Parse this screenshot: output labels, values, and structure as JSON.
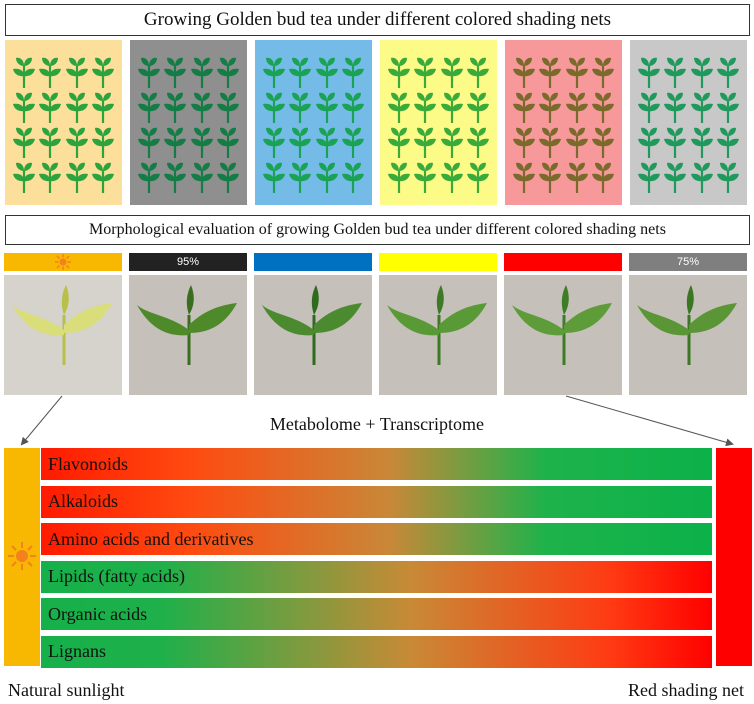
{
  "title_top": "Growing Golden bud tea under different colored shading nets",
  "title_morph": "Morphological evaluation of growing Golden bud tea under different colored shading nets",
  "panels": [
    {
      "bg": "#fcdf9a",
      "plant": "#2ca33c"
    },
    {
      "bg": "#8f8f8f",
      "plant": "#137d45"
    },
    {
      "bg": "#74bce7",
      "plant": "#1aa255"
    },
    {
      "bg": "#fdfb87",
      "plant": "#3aaa3a"
    },
    {
      "bg": "#f7999b",
      "plant": "#7a6a2c"
    },
    {
      "bg": "#c8c8c8",
      "plant": "#1f9a5c"
    }
  ],
  "bars": [
    {
      "color": "#f8b700",
      "label": "",
      "icon": "sun-icon"
    },
    {
      "color": "#222222",
      "label": "95%"
    },
    {
      "color": "#0070c0",
      "label": ""
    },
    {
      "color": "#ffff00",
      "label": ""
    },
    {
      "color": "#ff0000",
      "label": ""
    },
    {
      "color": "#7f7f7f",
      "label": "75%"
    }
  ],
  "omics_label": "Metabolome + Transcriptome",
  "metabolites": [
    {
      "label": "Flavonoids",
      "direction": "red-to-green"
    },
    {
      "label": "Alkaloids",
      "direction": "red-to-green"
    },
    {
      "label": "Amino acids and derivatives",
      "direction": "red-to-green"
    },
    {
      "label": "Lipids (fatty acids)",
      "direction": "green-to-red"
    },
    {
      "label": "Organic acids",
      "direction": "green-to-red"
    },
    {
      "label": "Lignans",
      "direction": "green-to-red"
    }
  ],
  "footer": {
    "left": "Natural sunlight",
    "right": "Red shading net"
  },
  "colors": {
    "natural_sunlight": "#f8b700",
    "red_net": "#ff0000"
  }
}
